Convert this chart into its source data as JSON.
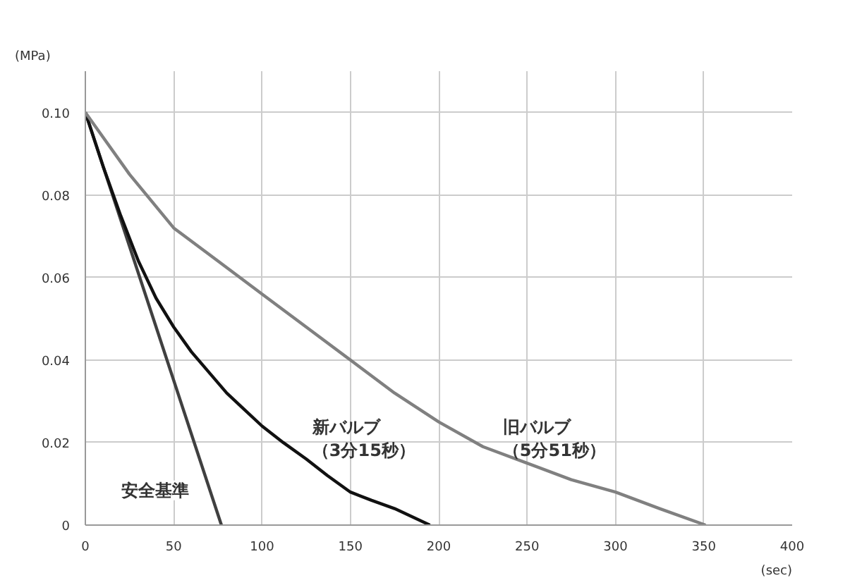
{
  "chart_data": {
    "type": "line",
    "xlabel": "(sec)",
    "ylabel": "(MPa)",
    "xlim": [
      0,
      400
    ],
    "xticks": [
      0,
      50,
      100,
      150,
      200,
      250,
      300,
      350,
      400
    ],
    "ylim": [
      0,
      0.11
    ],
    "yticks": [
      0,
      0.02,
      0.04,
      0.06,
      0.08,
      {
        "value": 0.1,
        "label": "0.10"
      }
    ],
    "grid": true,
    "legend": false,
    "marker": "none",
    "line_style": "solid",
    "series": [
      {
        "name": "安全基準",
        "color": "#404040",
        "x": [
          0,
          77
        ],
        "values": [
          0.1,
          0
        ]
      },
      {
        "name": "新バルブ（3分15秒）",
        "color": "#111111",
        "x": [
          0,
          10,
          20,
          30,
          40,
          50,
          60,
          70,
          80,
          90,
          100,
          112,
          125,
          137,
          150,
          162,
          175,
          185,
          195
        ],
        "values": [
          0.1,
          0.087,
          0.075,
          0.064,
          0.055,
          0.048,
          0.042,
          0.037,
          0.032,
          0.028,
          0.024,
          0.02,
          0.016,
          0.012,
          0.008,
          0.006,
          0.004,
          0.002,
          0
        ]
      },
      {
        "name": "旧バルブ（5分51秒）",
        "color": "#808080",
        "x": [
          0,
          25,
          50,
          75,
          100,
          125,
          150,
          175,
          200,
          225,
          250,
          275,
          300,
          325,
          351
        ],
        "values": [
          0.1,
          0.085,
          0.072,
          0.064,
          0.056,
          0.048,
          0.04,
          0.032,
          0.025,
          0.019,
          0.015,
          0.011,
          0.008,
          0.004,
          0
        ]
      }
    ]
  }
}
